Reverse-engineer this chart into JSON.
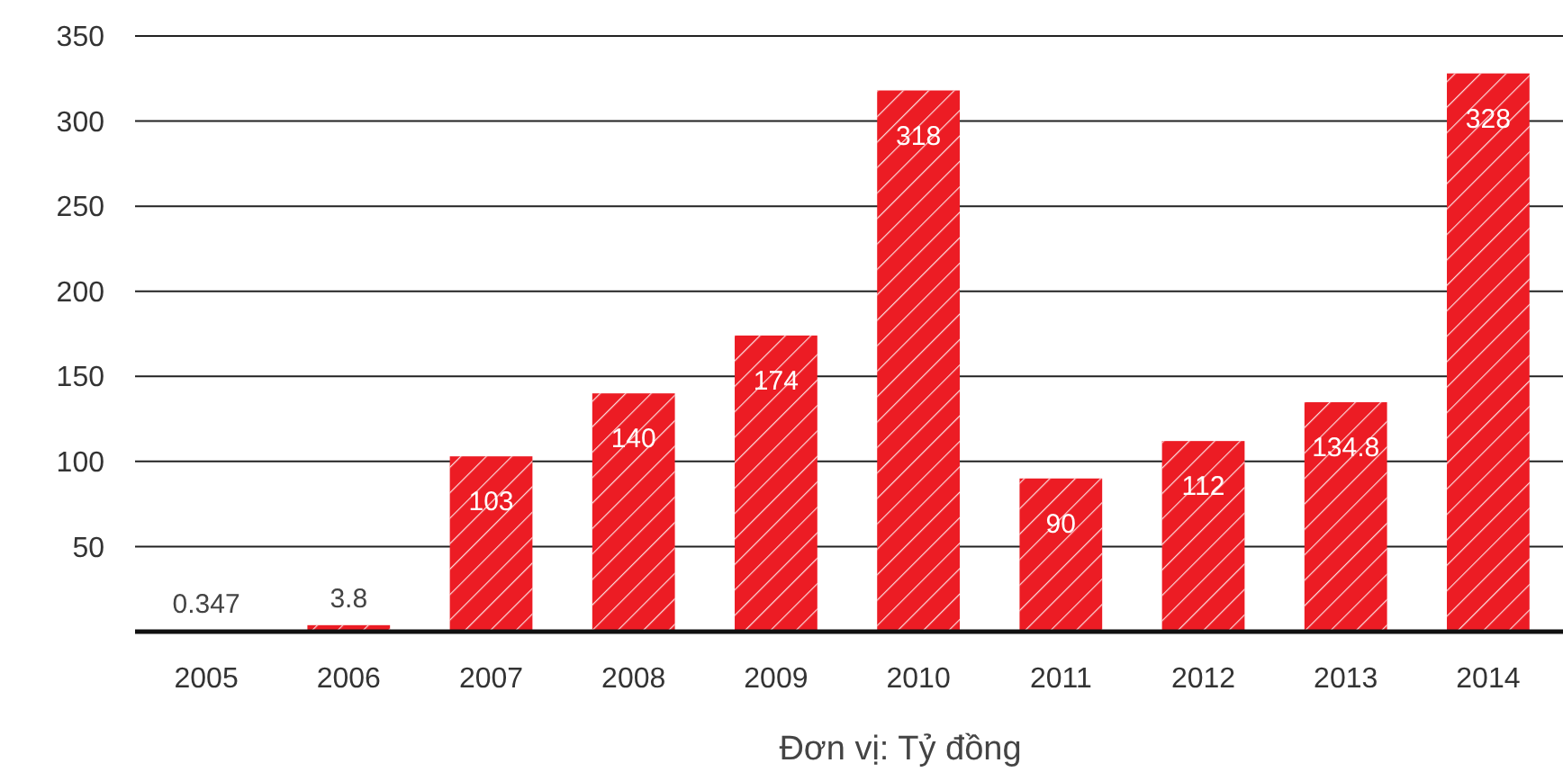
{
  "chart_data": {
    "type": "bar",
    "xlabel": "Đơn vị: Tỷ đồng",
    "categories": [
      "2005",
      "2006",
      "2007",
      "2008",
      "2009",
      "2010",
      "2011",
      "2012",
      "2013",
      "2014"
    ],
    "values": [
      0.347,
      3.8,
      103,
      140,
      174,
      318,
      90,
      112,
      134.8,
      328
    ],
    "color": "#ec1c24",
    "ylim": [
      0,
      350
    ],
    "yticks": [
      {
        "value": 0,
        "label": null
      },
      50,
      100,
      150,
      200,
      250,
      300,
      350
    ],
    "grid": "y",
    "data_labels": true
  }
}
